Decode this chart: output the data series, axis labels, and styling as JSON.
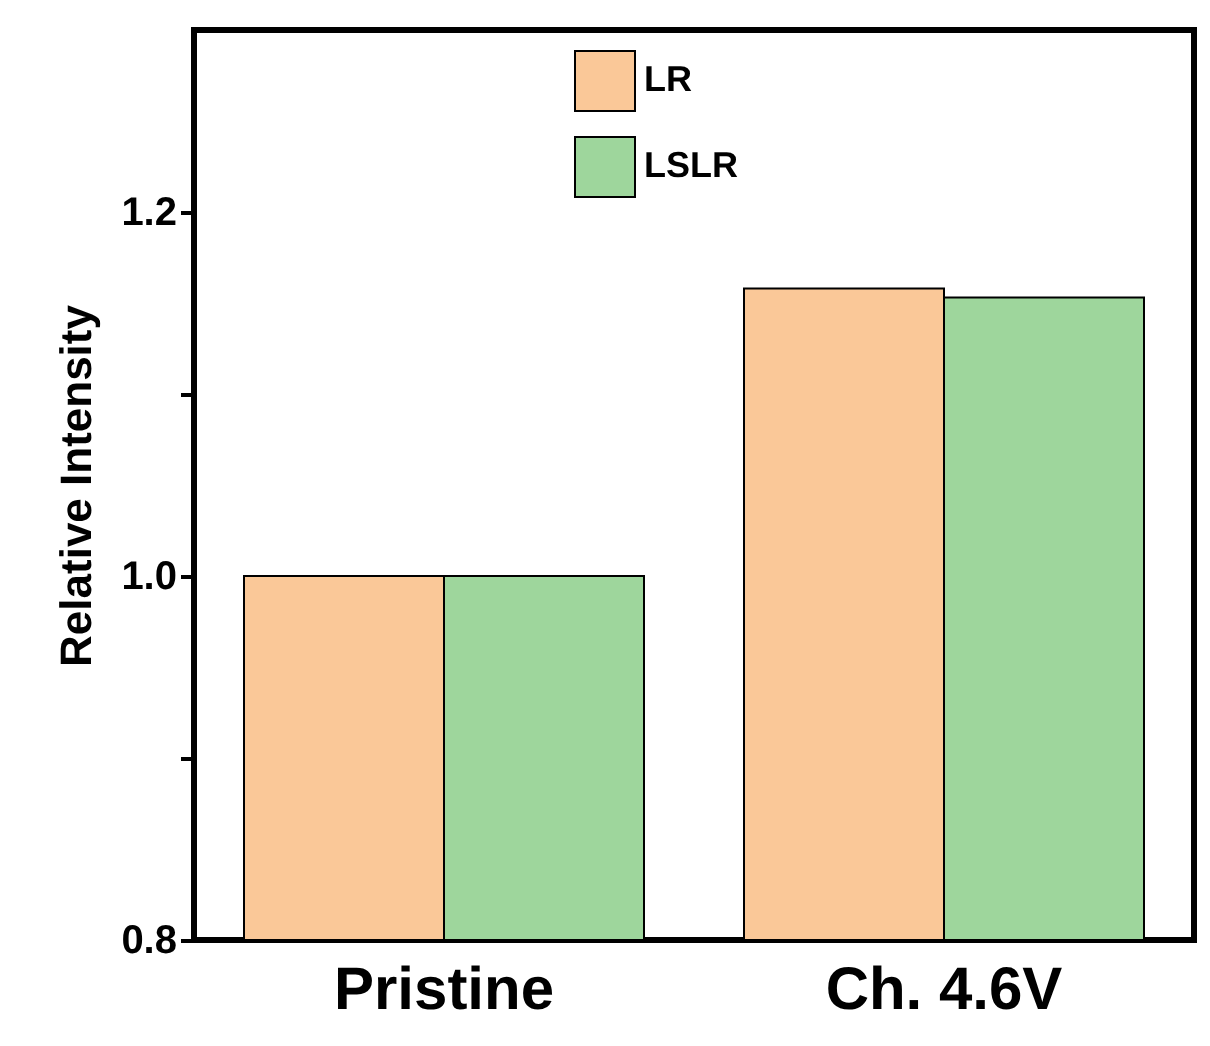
{
  "chart_data": {
    "type": "bar",
    "ylabel": "Relative Intensity",
    "categories": [
      "Pristine",
      "Ch. 4.6V"
    ],
    "series": [
      {
        "name": "LR",
        "color": "#fac898",
        "values": [
          1.0,
          1.158
        ]
      },
      {
        "name": "LSLR",
        "color": "#9ed69c",
        "values": [
          1.0,
          1.153
        ]
      }
    ],
    "ylim": [
      0.8,
      1.3
    ],
    "yticks": [
      0.8,
      {
        "value": 0.9,
        "label": null
      },
      {
        "value": 1.0,
        "label": "1.0"
      },
      {
        "value": 1.1,
        "label": null
      },
      1.2
    ],
    "legend": "top",
    "grid": false
  }
}
